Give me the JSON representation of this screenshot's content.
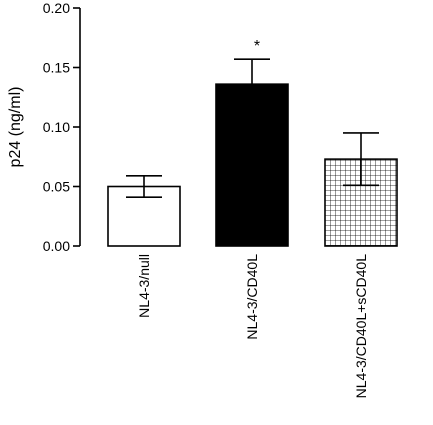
{
  "chart_data": {
    "type": "bar",
    "title": "",
    "xlabel": "",
    "ylabel": "p24 (ng/ml)",
    "ylim": [
      0,
      0.2
    ],
    "yticks": [
      "0.00",
      "0.05",
      "0.10",
      "0.15",
      "0.20"
    ],
    "categories": [
      "NL4-3/null",
      "NL4-3/CD40L",
      "NL4-3/CD40L+sCD40L"
    ],
    "values": [
      0.05,
      0.136,
      0.073
    ],
    "errors": [
      0.009,
      0.021,
      0.022
    ],
    "fills": [
      "white",
      "black",
      "grid-hatch"
    ],
    "annotations": [
      "",
      "*",
      ""
    ],
    "grid": false,
    "legend": "none"
  }
}
